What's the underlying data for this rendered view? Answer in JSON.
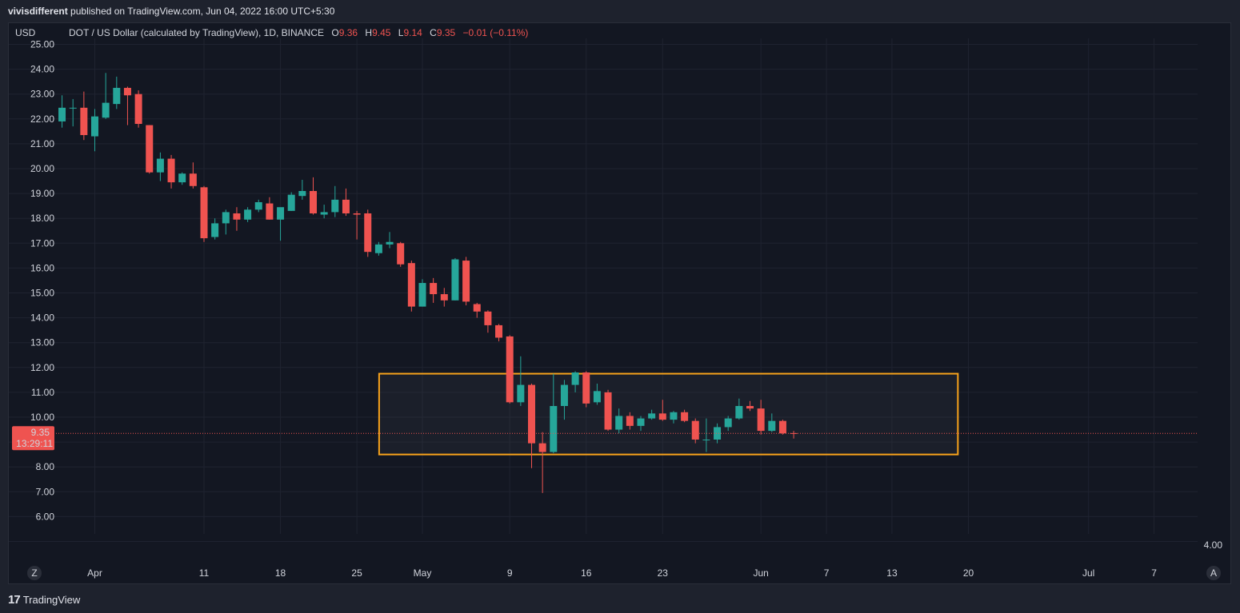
{
  "publish": {
    "author": "vivisdifferent",
    "text": "published on TradingView.com, Jun 04, 2022 16:00 UTC+5:30"
  },
  "legend": {
    "currency": "USD",
    "symbol": "DOT / US Dollar (calculated by TradingView), 1D, BINANCE",
    "o_label": "O",
    "o_value": "9.36",
    "h_label": "H",
    "h_value": "9.45",
    "l_label": "L",
    "l_value": "9.14",
    "c_label": "C",
    "c_value": "9.35",
    "change": "−0.01 (−0.11%)"
  },
  "price_tag": {
    "price": "9.35",
    "countdown": "13:29:11"
  },
  "footer": {
    "logo_mark": "17",
    "brand": "TradingView"
  },
  "axis_buttons": {
    "left": "Z",
    "right": "A"
  },
  "colors": {
    "background": "#131722",
    "up": "#26a69a",
    "down": "#ef5350",
    "grid": "#1f2330",
    "highlight_box": "#f7a21b"
  },
  "chart_data": {
    "type": "candlestick",
    "y_axis_ticks": [
      "25.00",
      "24.00",
      "23.00",
      "22.00",
      "21.00",
      "20.00",
      "19.00",
      "18.00",
      "17.00",
      "16.00",
      "15.00",
      "14.00",
      "13.00",
      "12.00",
      "11.00",
      "10.00",
      "9.00",
      "8.00",
      "7.00",
      "6.00",
      "4.00"
    ],
    "ylim": [
      5.0,
      25.5
    ],
    "x_axis_ticks": [
      "Apr",
      "11",
      "18",
      "25",
      "May",
      "9",
      "16",
      "23",
      "Jun",
      "7",
      "13",
      "20",
      "Jul",
      "7"
    ],
    "grid": true,
    "highlight_box": {
      "date_start": "2022-04-27",
      "date_end": "2022-06-19",
      "price_low": 8.5,
      "price_high": 11.75
    },
    "candles": [
      {
        "date": "2022-03-29",
        "o": 21.9,
        "h": 22.95,
        "l": 21.65,
        "c": 22.45
      },
      {
        "date": "2022-03-30",
        "o": 22.45,
        "h": 22.8,
        "l": 21.7,
        "c": 22.45
      },
      {
        "date": "2022-03-31",
        "o": 22.45,
        "h": 23.1,
        "l": 21.15,
        "c": 21.35
      },
      {
        "date": "2022-04-01",
        "o": 21.3,
        "h": 22.4,
        "l": 20.7,
        "c": 22.1
      },
      {
        "date": "2022-04-02",
        "o": 22.05,
        "h": 23.85,
        "l": 22.0,
        "c": 22.65
      },
      {
        "date": "2022-04-03",
        "o": 22.6,
        "h": 23.7,
        "l": 22.4,
        "c": 23.25
      },
      {
        "date": "2022-04-04",
        "o": 23.25,
        "h": 23.3,
        "l": 21.75,
        "c": 22.95
      },
      {
        "date": "2022-04-05",
        "o": 23.0,
        "h": 23.15,
        "l": 21.65,
        "c": 21.8
      },
      {
        "date": "2022-04-06",
        "o": 21.75,
        "h": 21.75,
        "l": 19.8,
        "c": 19.85
      },
      {
        "date": "2022-04-07",
        "o": 19.85,
        "h": 20.65,
        "l": 19.5,
        "c": 20.4
      },
      {
        "date": "2022-04-08",
        "o": 20.4,
        "h": 20.55,
        "l": 19.2,
        "c": 19.45
      },
      {
        "date": "2022-04-09",
        "o": 19.45,
        "h": 19.85,
        "l": 19.35,
        "c": 19.8
      },
      {
        "date": "2022-04-10",
        "o": 19.8,
        "h": 20.25,
        "l": 19.2,
        "c": 19.3
      },
      {
        "date": "2022-04-11",
        "o": 19.25,
        "h": 19.3,
        "l": 17.05,
        "c": 17.2
      },
      {
        "date": "2022-04-12",
        "o": 17.25,
        "h": 18.0,
        "l": 17.15,
        "c": 17.8
      },
      {
        "date": "2022-04-13",
        "o": 17.8,
        "h": 18.35,
        "l": 17.35,
        "c": 18.25
      },
      {
        "date": "2022-04-14",
        "o": 18.2,
        "h": 18.45,
        "l": 17.5,
        "c": 17.95
      },
      {
        "date": "2022-04-15",
        "o": 17.95,
        "h": 18.45,
        "l": 17.85,
        "c": 18.35
      },
      {
        "date": "2022-04-16",
        "o": 18.35,
        "h": 18.75,
        "l": 18.25,
        "c": 18.65
      },
      {
        "date": "2022-04-17",
        "o": 18.6,
        "h": 18.85,
        "l": 17.95,
        "c": 17.95
      },
      {
        "date": "2022-04-18",
        "o": 17.95,
        "h": 18.25,
        "l": 17.1,
        "c": 18.45
      },
      {
        "date": "2022-04-19",
        "o": 18.3,
        "h": 19.05,
        "l": 18.3,
        "c": 18.95
      },
      {
        "date": "2022-04-20",
        "o": 18.9,
        "h": 19.55,
        "l": 18.75,
        "c": 19.1
      },
      {
        "date": "2022-04-21",
        "o": 19.1,
        "h": 19.65,
        "l": 18.15,
        "c": 18.2
      },
      {
        "date": "2022-04-22",
        "o": 18.15,
        "h": 18.55,
        "l": 18.0,
        "c": 18.25
      },
      {
        "date": "2022-04-23",
        "o": 18.25,
        "h": 19.3,
        "l": 18.05,
        "c": 18.75
      },
      {
        "date": "2022-04-24",
        "o": 18.75,
        "h": 19.2,
        "l": 18.1,
        "c": 18.2
      },
      {
        "date": "2022-04-25",
        "o": 18.2,
        "h": 18.3,
        "l": 17.15,
        "c": 18.15
      },
      {
        "date": "2022-04-26",
        "o": 18.2,
        "h": 18.35,
        "l": 16.45,
        "c": 16.65
      },
      {
        "date": "2022-04-27",
        "o": 16.6,
        "h": 17.05,
        "l": 16.5,
        "c": 16.95
      },
      {
        "date": "2022-04-28",
        "o": 16.95,
        "h": 17.45,
        "l": 16.8,
        "c": 17.05
      },
      {
        "date": "2022-04-29",
        "o": 17.0,
        "h": 17.05,
        "l": 16.05,
        "c": 16.15
      },
      {
        "date": "2022-04-30",
        "o": 16.2,
        "h": 16.3,
        "l": 14.25,
        "c": 14.45
      },
      {
        "date": "2022-05-01",
        "o": 14.45,
        "h": 15.55,
        "l": 14.45,
        "c": 15.4
      },
      {
        "date": "2022-05-02",
        "o": 15.4,
        "h": 15.6,
        "l": 14.6,
        "c": 14.95
      },
      {
        "date": "2022-05-03",
        "o": 14.95,
        "h": 15.2,
        "l": 14.45,
        "c": 14.7
      },
      {
        "date": "2022-05-04",
        "o": 14.7,
        "h": 16.4,
        "l": 14.7,
        "c": 16.35
      },
      {
        "date": "2022-05-05",
        "o": 16.3,
        "h": 16.45,
        "l": 14.5,
        "c": 14.65
      },
      {
        "date": "2022-05-06",
        "o": 14.55,
        "h": 14.6,
        "l": 14.0,
        "c": 14.25
      },
      {
        "date": "2022-05-07",
        "o": 14.25,
        "h": 14.3,
        "l": 13.4,
        "c": 13.7
      },
      {
        "date": "2022-05-08",
        "o": 13.7,
        "h": 13.75,
        "l": 13.05,
        "c": 13.2
      },
      {
        "date": "2022-05-09",
        "o": 13.25,
        "h": 13.3,
        "l": 10.55,
        "c": 10.6
      },
      {
        "date": "2022-05-10",
        "o": 10.6,
        "h": 12.45,
        "l": 10.45,
        "c": 11.3
      },
      {
        "date": "2022-05-11",
        "o": 11.3,
        "h": 11.35,
        "l": 7.95,
        "c": 8.95
      },
      {
        "date": "2022-05-12",
        "o": 8.95,
        "h": 9.4,
        "l": 6.95,
        "c": 8.6
      },
      {
        "date": "2022-05-13",
        "o": 8.6,
        "h": 11.75,
        "l": 8.55,
        "c": 10.45
      },
      {
        "date": "2022-05-14",
        "o": 10.45,
        "h": 11.5,
        "l": 9.9,
        "c": 11.3
      },
      {
        "date": "2022-05-15",
        "o": 11.3,
        "h": 11.85,
        "l": 11.0,
        "c": 11.8
      },
      {
        "date": "2022-05-16",
        "o": 11.8,
        "h": 11.85,
        "l": 10.4,
        "c": 10.55
      },
      {
        "date": "2022-05-17",
        "o": 10.6,
        "h": 11.35,
        "l": 10.5,
        "c": 11.05
      },
      {
        "date": "2022-05-18",
        "o": 11.0,
        "h": 11.1,
        "l": 9.45,
        "c": 9.5
      },
      {
        "date": "2022-05-19",
        "o": 9.5,
        "h": 10.35,
        "l": 9.35,
        "c": 10.05
      },
      {
        "date": "2022-05-20",
        "o": 10.05,
        "h": 10.2,
        "l": 9.5,
        "c": 9.65
      },
      {
        "date": "2022-05-21",
        "o": 9.65,
        "h": 10.05,
        "l": 9.45,
        "c": 9.95
      },
      {
        "date": "2022-05-22",
        "o": 9.95,
        "h": 10.3,
        "l": 9.9,
        "c": 10.15
      },
      {
        "date": "2022-05-23",
        "o": 10.15,
        "h": 10.7,
        "l": 9.85,
        "c": 9.9
      },
      {
        "date": "2022-05-24",
        "o": 9.9,
        "h": 10.25,
        "l": 9.75,
        "c": 10.2
      },
      {
        "date": "2022-05-25",
        "o": 10.2,
        "h": 10.3,
        "l": 9.8,
        "c": 9.85
      },
      {
        "date": "2022-05-26",
        "o": 9.85,
        "h": 9.95,
        "l": 8.95,
        "c": 9.1
      },
      {
        "date": "2022-05-27",
        "o": 9.1,
        "h": 9.95,
        "l": 8.6,
        "c": 9.1
      },
      {
        "date": "2022-05-28",
        "o": 9.1,
        "h": 9.75,
        "l": 8.95,
        "c": 9.6
      },
      {
        "date": "2022-05-29",
        "o": 9.6,
        "h": 10.05,
        "l": 9.45,
        "c": 9.95
      },
      {
        "date": "2022-05-30",
        "o": 9.95,
        "h": 10.75,
        "l": 9.9,
        "c": 10.45
      },
      {
        "date": "2022-05-31",
        "o": 10.45,
        "h": 10.65,
        "l": 10.25,
        "c": 10.35
      },
      {
        "date": "2022-06-01",
        "o": 10.35,
        "h": 10.7,
        "l": 9.3,
        "c": 9.45
      },
      {
        "date": "2022-06-02",
        "o": 9.45,
        "h": 10.15,
        "l": 9.4,
        "c": 9.85
      },
      {
        "date": "2022-06-03",
        "o": 9.85,
        "h": 9.9,
        "l": 9.3,
        "c": 9.35
      },
      {
        "date": "2022-06-04",
        "o": 9.36,
        "h": 9.45,
        "l": 9.14,
        "c": 9.35
      }
    ]
  }
}
